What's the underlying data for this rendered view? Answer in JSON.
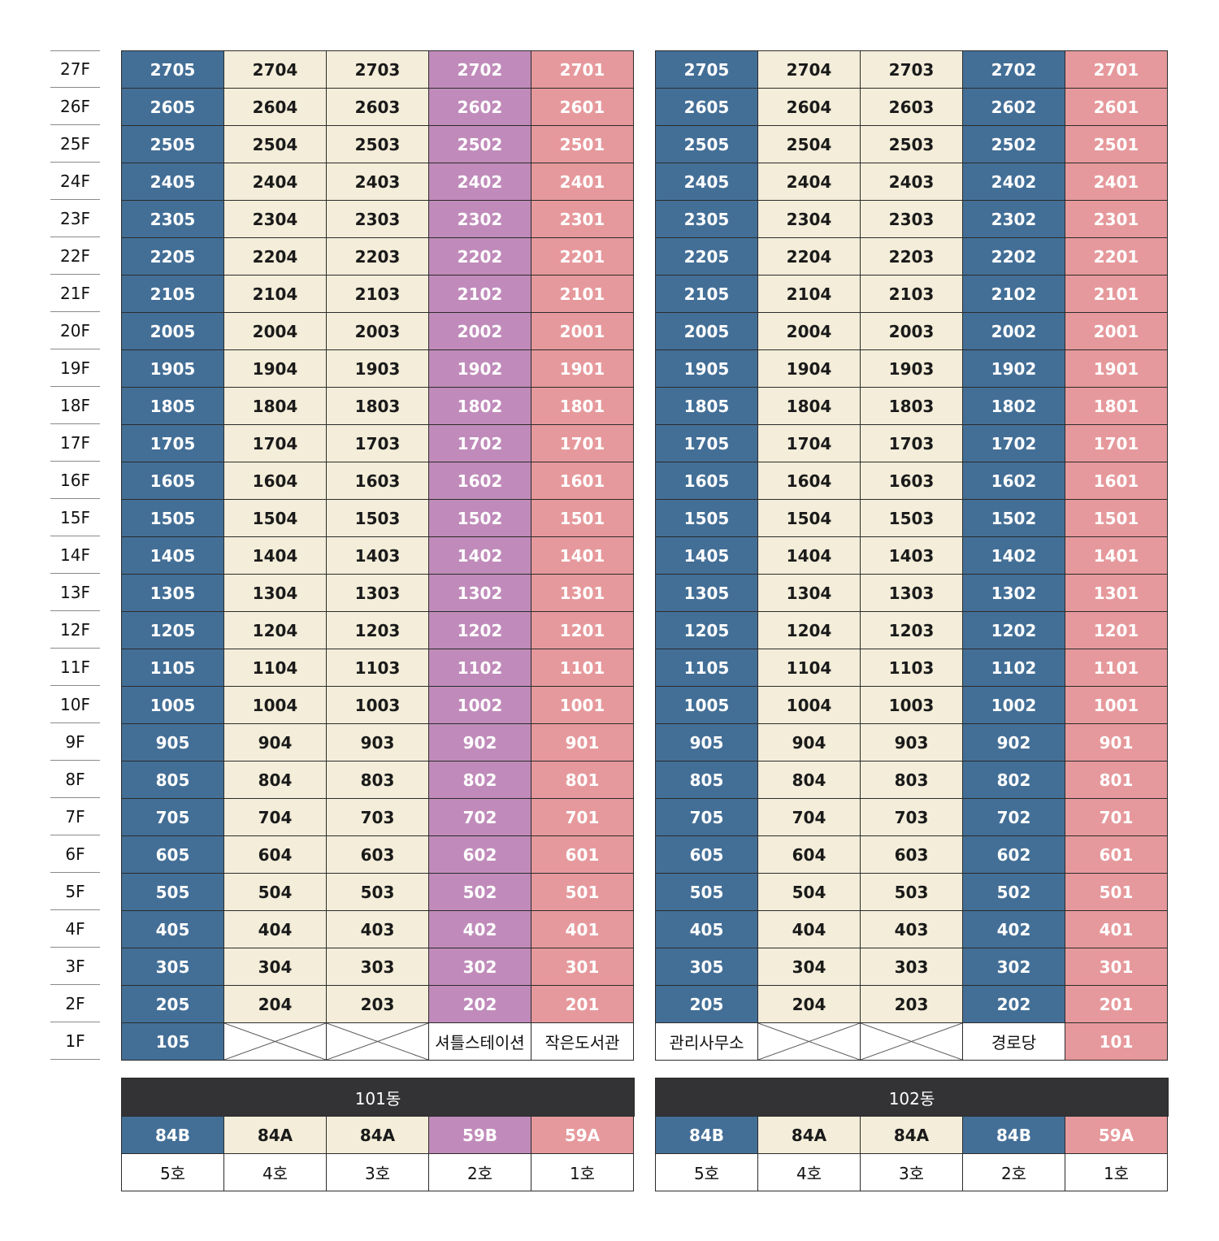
{
  "floors": [
    "27F",
    "26F",
    "25F",
    "24F",
    "23F",
    "22F",
    "21F",
    "20F",
    "19F",
    "18F",
    "17F",
    "16F",
    "15F",
    "14F",
    "13F",
    "12F",
    "11F",
    "10F",
    "9F",
    "8F",
    "7F",
    "6F",
    "5F",
    "4F",
    "3F",
    "2F",
    "1F"
  ],
  "colors": {
    "blue": "#436f97",
    "cream": "#f3edd9",
    "purple": "#c08bba",
    "pink": "#e6999c",
    "header": "#333335"
  },
  "buildings": [
    {
      "name": "101동",
      "units": [
        "84B",
        "84A",
        "84A",
        "59B",
        "59A"
      ],
      "ho_labels": [
        "5호",
        "4호",
        "3호",
        "2호",
        "1호"
      ],
      "column_colors": [
        "blue",
        "cream",
        "cream",
        "purple",
        "pink"
      ],
      "rows": [
        [
          "2705",
          "2704",
          "2703",
          "2702",
          "2701"
        ],
        [
          "2605",
          "2604",
          "2603",
          "2602",
          "2601"
        ],
        [
          "2505",
          "2504",
          "2503",
          "2502",
          "2501"
        ],
        [
          "2405",
          "2404",
          "2403",
          "2402",
          "2401"
        ],
        [
          "2305",
          "2304",
          "2303",
          "2302",
          "2301"
        ],
        [
          "2205",
          "2204",
          "2203",
          "2202",
          "2201"
        ],
        [
          "2105",
          "2104",
          "2103",
          "2102",
          "2101"
        ],
        [
          "2005",
          "2004",
          "2003",
          "2002",
          "2001"
        ],
        [
          "1905",
          "1904",
          "1903",
          "1902",
          "1901"
        ],
        [
          "1805",
          "1804",
          "1803",
          "1802",
          "1801"
        ],
        [
          "1705",
          "1704",
          "1703",
          "1702",
          "1701"
        ],
        [
          "1605",
          "1604",
          "1603",
          "1602",
          "1601"
        ],
        [
          "1505",
          "1504",
          "1503",
          "1502",
          "1501"
        ],
        [
          "1405",
          "1404",
          "1403",
          "1402",
          "1401"
        ],
        [
          "1305",
          "1304",
          "1303",
          "1302",
          "1301"
        ],
        [
          "1205",
          "1204",
          "1203",
          "1202",
          "1201"
        ],
        [
          "1105",
          "1104",
          "1103",
          "1102",
          "1101"
        ],
        [
          "1005",
          "1004",
          "1003",
          "1002",
          "1001"
        ],
        [
          "905",
          "904",
          "903",
          "902",
          "901"
        ],
        [
          "805",
          "804",
          "803",
          "802",
          "801"
        ],
        [
          "705",
          "704",
          "703",
          "702",
          "701"
        ],
        [
          "605",
          "604",
          "603",
          "602",
          "601"
        ],
        [
          "505",
          "504",
          "503",
          "502",
          "501"
        ],
        [
          "405",
          "404",
          "403",
          "402",
          "401"
        ],
        [
          "305",
          "304",
          "303",
          "302",
          "301"
        ],
        [
          "205",
          "204",
          "203",
          "202",
          "201"
        ]
      ],
      "ground_floor": [
        {
          "label": "105",
          "style": "blue"
        },
        {
          "label": "",
          "style": "none"
        },
        {
          "label": "",
          "style": "none"
        },
        {
          "label": "셔틀스테이션",
          "style": "white"
        },
        {
          "label": "작은도서관",
          "style": "white"
        }
      ]
    },
    {
      "name": "102동",
      "units": [
        "84B",
        "84A",
        "84A",
        "84B",
        "59A"
      ],
      "ho_labels": [
        "5호",
        "4호",
        "3호",
        "2호",
        "1호"
      ],
      "column_colors": [
        "blue",
        "cream",
        "cream",
        "blue",
        "pink"
      ],
      "rows": [
        [
          "2705",
          "2704",
          "2703",
          "2702",
          "2701"
        ],
        [
          "2605",
          "2604",
          "2603",
          "2602",
          "2601"
        ],
        [
          "2505",
          "2504",
          "2503",
          "2502",
          "2501"
        ],
        [
          "2405",
          "2404",
          "2403",
          "2402",
          "2401"
        ],
        [
          "2305",
          "2304",
          "2303",
          "2302",
          "2301"
        ],
        [
          "2205",
          "2204",
          "2203",
          "2202",
          "2201"
        ],
        [
          "2105",
          "2104",
          "2103",
          "2102",
          "2101"
        ],
        [
          "2005",
          "2004",
          "2003",
          "2002",
          "2001"
        ],
        [
          "1905",
          "1904",
          "1903",
          "1902",
          "1901"
        ],
        [
          "1805",
          "1804",
          "1803",
          "1802",
          "1801"
        ],
        [
          "1705",
          "1704",
          "1703",
          "1702",
          "1701"
        ],
        [
          "1605",
          "1604",
          "1603",
          "1602",
          "1601"
        ],
        [
          "1505",
          "1504",
          "1503",
          "1502",
          "1501"
        ],
        [
          "1405",
          "1404",
          "1403",
          "1402",
          "1401"
        ],
        [
          "1305",
          "1304",
          "1303",
          "1302",
          "1301"
        ],
        [
          "1205",
          "1204",
          "1203",
          "1202",
          "1201"
        ],
        [
          "1105",
          "1104",
          "1103",
          "1102",
          "1101"
        ],
        [
          "1005",
          "1004",
          "1003",
          "1002",
          "1001"
        ],
        [
          "905",
          "904",
          "903",
          "902",
          "901"
        ],
        [
          "805",
          "804",
          "803",
          "802",
          "801"
        ],
        [
          "705",
          "704",
          "703",
          "702",
          "701"
        ],
        [
          "605",
          "604",
          "603",
          "602",
          "601"
        ],
        [
          "505",
          "504",
          "503",
          "502",
          "501"
        ],
        [
          "405",
          "404",
          "403",
          "402",
          "401"
        ],
        [
          "305",
          "304",
          "303",
          "302",
          "301"
        ],
        [
          "205",
          "204",
          "203",
          "202",
          "201"
        ]
      ],
      "ground_floor": [
        {
          "label": "관리사무소",
          "style": "white"
        },
        {
          "label": "",
          "style": "none"
        },
        {
          "label": "",
          "style": "none"
        },
        {
          "label": "경로당",
          "style": "white"
        },
        {
          "label": "101",
          "style": "pink"
        }
      ]
    }
  ]
}
